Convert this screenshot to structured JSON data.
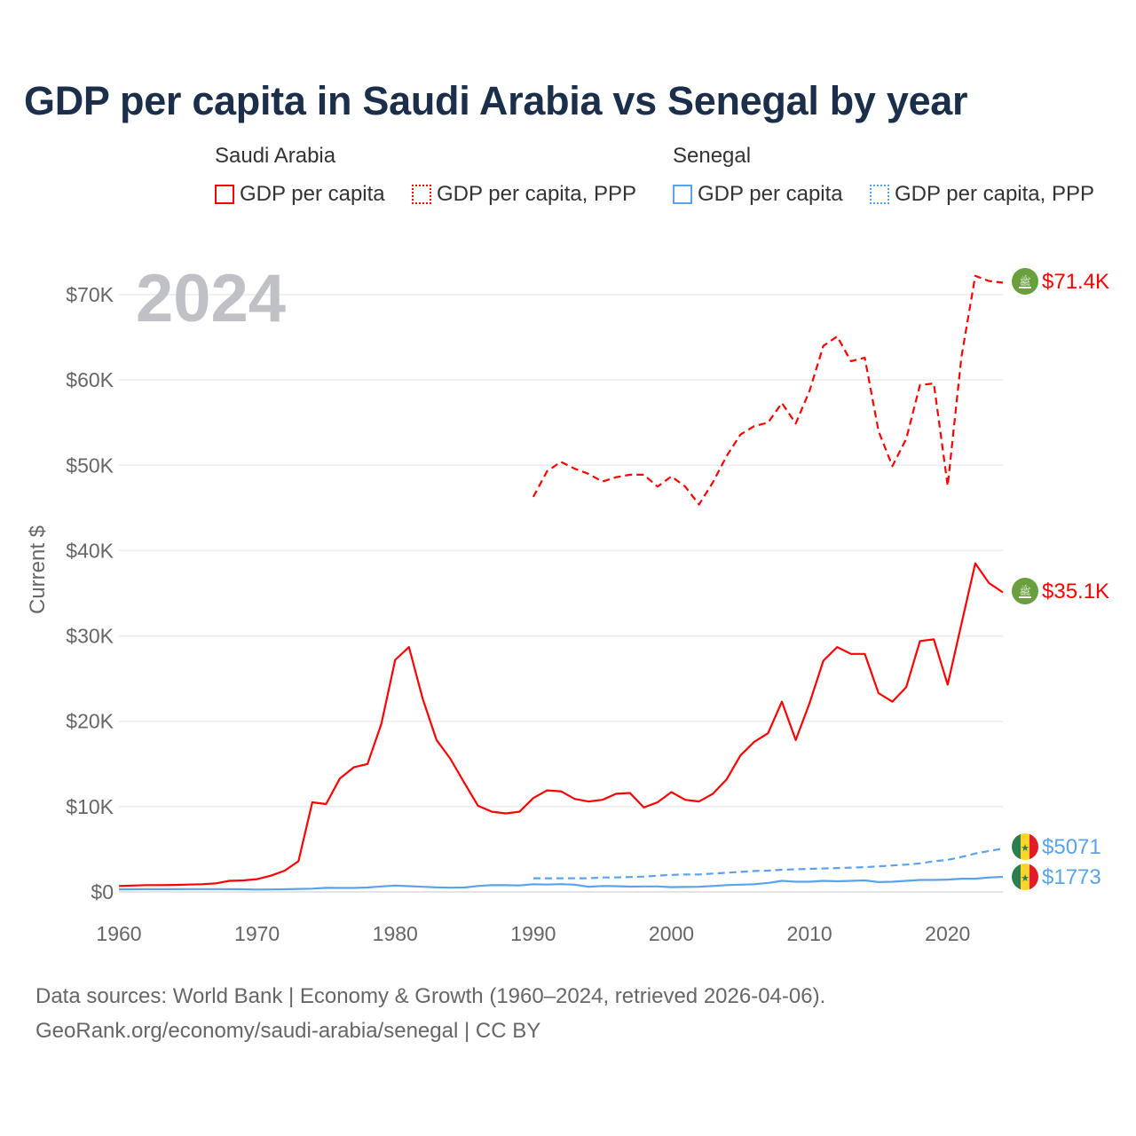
{
  "title": "GDP per capita in Saudi Arabia vs Senegal by year",
  "legend": {
    "groups": [
      {
        "country": "Saudi Arabia",
        "items": [
          "GDP per capita",
          "GDP per capita, PPP"
        ],
        "color": "#ff0000"
      },
      {
        "country": "Senegal",
        "items": [
          "GDP per capita",
          "GDP per capita, PPP"
        ],
        "color": "#5aa3ea"
      }
    ]
  },
  "year_overlay": "2024",
  "footer": {
    "line1": "Data sources: World Bank | Economy & Growth (1960–2024, retrieved 2026-04-06).",
    "line2": "GeoRank.org/economy/saudi-arabia/senegal | CC BY"
  },
  "end_labels": {
    "saudi_ppp": "$71.4K",
    "saudi_gdp": "$35.1K",
    "senegal_ppp": "$5071",
    "senegal_gdp": "$1773"
  },
  "chart_data": {
    "type": "line",
    "title": "GDP per capita in Saudi Arabia vs Senegal by year",
    "xlabel": "",
    "ylabel": "Current $",
    "xlim": [
      1960,
      2024
    ],
    "ylim": [
      0,
      70000
    ],
    "grid": true,
    "legend_placement": "top",
    "x_ticks": [
      1960,
      1970,
      1980,
      1990,
      2000,
      2010,
      2020
    ],
    "x_tick_labels": [
      "1960",
      "1970",
      "1980",
      "1990",
      "2000",
      "2010",
      "2020"
    ],
    "y_ticks": [
      0,
      10000,
      20000,
      30000,
      40000,
      50000,
      60000,
      70000
    ],
    "y_tick_labels": [
      "$0",
      "$10K",
      "$20K",
      "$30K",
      "$40K",
      "$50K",
      "$60K",
      "$70K"
    ],
    "series": [
      {
        "name": "Saudi Arabia GDP per capita",
        "color": "#ff0000",
        "dash": false,
        "start_year": 1960,
        "values": [
          700,
          750,
          800,
          800,
          820,
          860,
          900,
          1000,
          1300,
          1350,
          1500,
          1900,
          2500,
          3600,
          10500,
          10300,
          13300,
          14600,
          15000,
          19700,
          27200,
          28700,
          22600,
          17800,
          15600,
          12800,
          10100,
          9400,
          9200,
          9400,
          11000,
          11900,
          11800,
          10900,
          10600,
          10800,
          11500,
          11600,
          9900,
          10500,
          11700,
          10800,
          10600,
          11500,
          13200,
          16000,
          17600,
          18600,
          22300,
          17800,
          22100,
          27100,
          28700,
          27900,
          27900,
          23300,
          22300,
          24000,
          29400,
          29600,
          24300,
          31400,
          38500,
          36200,
          35100
        ]
      },
      {
        "name": "Saudi Arabia GDP per capita, PPP",
        "color": "#ff0000",
        "dash": true,
        "start_year": 1990,
        "values": [
          46300,
          49300,
          50400,
          49600,
          49000,
          48100,
          48600,
          48900,
          48900,
          47500,
          48700,
          47500,
          45400,
          48000,
          51100,
          53600,
          54600,
          55000,
          57300,
          54900,
          58700,
          64000,
          65100,
          62200,
          62600,
          54000,
          49900,
          53100,
          59400,
          59600,
          47600,
          62700,
          72200,
          71600,
          71400
        ]
      },
      {
        "name": "Senegal GDP per capita",
        "color": "#5aa3ea",
        "dash": false,
        "start_year": 1960,
        "values": [
          300,
          310,
          320,
          320,
          320,
          330,
          330,
          330,
          320,
          310,
          280,
          290,
          310,
          350,
          390,
          480,
          470,
          470,
          520,
          650,
          750,
          680,
          600,
          530,
          500,
          520,
          700,
          800,
          790,
          760,
          900,
          860,
          920,
          850,
          600,
          700,
          680,
          620,
          650,
          640,
          560,
          580,
          600,
          700,
          800,
          850,
          900,
          1050,
          1300,
          1200,
          1200,
          1300,
          1250,
          1300,
          1350,
          1150,
          1200,
          1300,
          1400,
          1400,
          1450,
          1550,
          1550,
          1700,
          1773
        ]
      },
      {
        "name": "Senegal GDP per capita, PPP",
        "color": "#5aa3ea",
        "dash": true,
        "start_year": 1990,
        "values": [
          1600,
          1600,
          1600,
          1600,
          1600,
          1700,
          1700,
          1750,
          1800,
          1900,
          2000,
          2050,
          2050,
          2150,
          2250,
          2350,
          2450,
          2500,
          2600,
          2650,
          2700,
          2750,
          2800,
          2850,
          2900,
          3000,
          3100,
          3200,
          3350,
          3600,
          3750,
          4100,
          4500,
          4800,
          5071
        ]
      }
    ]
  }
}
